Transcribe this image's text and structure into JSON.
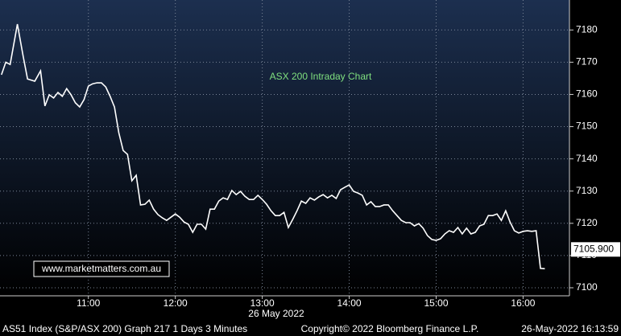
{
  "chart_data": {
    "type": "line",
    "title": "ASX 200 Intraday Chart",
    "watermark": "www.marketmatters.com.au",
    "x_label": "26 May 2022",
    "footer_left": "AS51 Index (S&P/ASX 200) Graph 217 1 Days 3 Minutes",
    "footer_center": "Copyright© 2022 Bloomberg Finance L.P.",
    "footer_right": "26-May-2022 16:13:59",
    "xlim": [
      599,
      992
    ],
    "xticks": [
      {
        "value": 660,
        "label": "11:00"
      },
      {
        "value": 720,
        "label": "12:00"
      },
      {
        "value": 780,
        "label": "13:00"
      },
      {
        "value": 840,
        "label": "14:00"
      },
      {
        "value": 900,
        "label": "15:00"
      },
      {
        "value": 960,
        "label": "16:00"
      }
    ],
    "ylim": [
      7097.5,
      7189.3
    ],
    "yticks": [
      7100,
      7110,
      7120,
      7130,
      7140,
      7150,
      7160,
      7170,
      7180
    ],
    "grid": true,
    "series": [
      {
        "name": "AS51 Index",
        "color": "#ffffff",
        "x": [
          600,
          603,
          606,
          611,
          615,
          618,
          623,
          627,
          630,
          633,
          636,
          639,
          642,
          645,
          648,
          651,
          654,
          657,
          660,
          663,
          666,
          669,
          672,
          675,
          678,
          681,
          684,
          687,
          690,
          693,
          696,
          699,
          702,
          705,
          708,
          711,
          714,
          717,
          720,
          723,
          726,
          729,
          732,
          735,
          738,
          741,
          744,
          747,
          750,
          753,
          756,
          759,
          762,
          765,
          768,
          771,
          774,
          777,
          780,
          783,
          786,
          789,
          792,
          795,
          798,
          801,
          804,
          807,
          810,
          813,
          816,
          819,
          822,
          825,
          828,
          831,
          834,
          837,
          840,
          843,
          846,
          849,
          852,
          855,
          858,
          861,
          864,
          867,
          870,
          873,
          876,
          879,
          882,
          885,
          888,
          891,
          894,
          897,
          900,
          903,
          906,
          909,
          912,
          915,
          918,
          921,
          924,
          927,
          930,
          933,
          936,
          939,
          942,
          945,
          948,
          951,
          954,
          957,
          960,
          963,
          966,
          969,
          972,
          975
        ],
        "values": [
          7166.1,
          7170.0,
          7169.3,
          7181.8,
          7171.8,
          7164.8,
          7164.1,
          7167.3,
          7156.4,
          7159.9,
          7158.9,
          7160.6,
          7159.4,
          7161.8,
          7159.9,
          7157.4,
          7156.1,
          7158.4,
          7162.6,
          7163.3,
          7163.6,
          7163.6,
          7162.3,
          7159.4,
          7156.1,
          7148.1,
          7142.6,
          7141.4,
          7133.2,
          7134.9,
          7125.7,
          7125.9,
          7127.2,
          7124.4,
          7122.7,
          7121.7,
          7120.9,
          7121.9,
          7122.9,
          7121.9,
          7120.4,
          7119.7,
          7117.2,
          7119.7,
          7119.7,
          7118.2,
          7124.4,
          7124.4,
          7126.9,
          7127.9,
          7127.4,
          7130.2,
          7128.9,
          7129.9,
          7128.4,
          7127.4,
          7127.4,
          7128.7,
          7127.4,
          7125.9,
          7123.9,
          7122.4,
          7122.4,
          7123.4,
          7118.7,
          7121.2,
          7123.9,
          7126.9,
          7126.2,
          7127.9,
          7127.2,
          7128.2,
          7128.9,
          7127.9,
          7128.7,
          7127.7,
          7130.4,
          7131.2,
          7131.9,
          7129.9,
          7129.4,
          7128.7,
          7125.7,
          7126.7,
          7125.2,
          7125.2,
          7125.7,
          7125.7,
          7123.9,
          7122.4,
          7120.9,
          7120.2,
          7120.2,
          7119.2,
          7119.9,
          7118.5,
          7116.2,
          7115.0,
          7114.7,
          7115.2,
          7116.7,
          7117.7,
          7117.2,
          7118.7,
          7116.7,
          7118.5,
          7116.7,
          7117.2,
          7119.2,
          7119.7,
          7122.4,
          7122.4,
          7122.9,
          7120.9,
          7123.9,
          7120.4,
          7117.7,
          7117.0,
          7117.5,
          7117.7,
          7117.5,
          7117.7,
          7106.0,
          7105.9
        ]
      }
    ],
    "price_tag": {
      "value": 7105.9,
      "label": "7105.900"
    }
  }
}
